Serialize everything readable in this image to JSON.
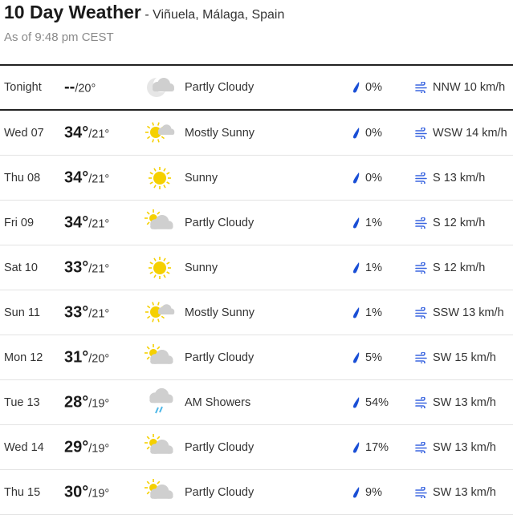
{
  "header": {
    "title": "10 Day Weather",
    "location": "- Viñuela, Málaga, Spain",
    "as_of": "As of 9:48 pm CEST"
  },
  "colors": {
    "sun": "#f5d000",
    "cloud": "#cfcfcf",
    "drop": "#1a4fd6",
    "wind": "#3c67e0",
    "rain": "#4fb8e8"
  },
  "days": [
    {
      "day": "Tonight",
      "high": "--",
      "low": "/20°",
      "icon": "moon-cloud",
      "condition": "Partly Cloudy",
      "precip": "0%",
      "wind": "NNW 10 km/h"
    },
    {
      "day": "Wed 07",
      "high": "34°",
      "low": "/21°",
      "icon": "mostly-sunny",
      "condition": "Mostly Sunny",
      "precip": "0%",
      "wind": "WSW 14 km/h"
    },
    {
      "day": "Thu 08",
      "high": "34°",
      "low": "/21°",
      "icon": "sunny",
      "condition": "Sunny",
      "precip": "0%",
      "wind": "S 13 km/h"
    },
    {
      "day": "Fri 09",
      "high": "34°",
      "low": "/21°",
      "icon": "partly-cloudy",
      "condition": "Partly Cloudy",
      "precip": "1%",
      "wind": "S 12 km/h"
    },
    {
      "day": "Sat 10",
      "high": "33°",
      "low": "/21°",
      "icon": "sunny",
      "condition": "Sunny",
      "precip": "1%",
      "wind": "S 12 km/h"
    },
    {
      "day": "Sun 11",
      "high": "33°",
      "low": "/21°",
      "icon": "mostly-sunny",
      "condition": "Mostly Sunny",
      "precip": "1%",
      "wind": "SSW 13 km/h"
    },
    {
      "day": "Mon 12",
      "high": "31°",
      "low": "/20°",
      "icon": "partly-cloudy",
      "condition": "Partly Cloudy",
      "precip": "5%",
      "wind": "SW 15 km/h"
    },
    {
      "day": "Tue 13",
      "high": "28°",
      "low": "/19°",
      "icon": "showers",
      "condition": "AM Showers",
      "precip": "54%",
      "wind": "SW 13 km/h"
    },
    {
      "day": "Wed 14",
      "high": "29°",
      "low": "/19°",
      "icon": "partly-cloudy",
      "condition": "Partly Cloudy",
      "precip": "17%",
      "wind": "SW 13 km/h"
    },
    {
      "day": "Thu 15",
      "high": "30°",
      "low": "/19°",
      "icon": "partly-cloudy",
      "condition": "Partly Cloudy",
      "precip": "9%",
      "wind": "SW 13 km/h"
    }
  ]
}
